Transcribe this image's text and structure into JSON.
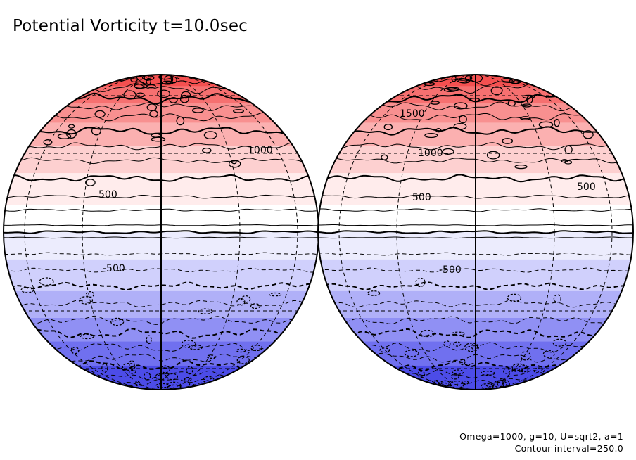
{
  "figure": {
    "title": "Potential Vorticity t=10.0sec",
    "parameters": "Omega=1000, g=10, U=sqrt2, a=1",
    "contour_interval": "Contour interval=250.0"
  },
  "colors": {
    "bands": [
      "#f45050",
      "#f67070",
      "#f89090",
      "#fbb0b0",
      "#fdd0d0",
      "#ffecec",
      "#ffffff",
      "#ececfd",
      "#d0d0fc",
      "#b0b0f8",
      "#9090f4",
      "#7070ef",
      "#4c4ce8"
    ],
    "contour": "#000000"
  },
  "globes": [
    {
      "name": "left",
      "labels": [
        {
          "text": "1000",
          "lat": 40
        },
        {
          "text": "500",
          "lat": 20
        },
        {
          "text": "-500",
          "lat": -20
        }
      ]
    },
    {
      "name": "right",
      "labels": [
        {
          "text": "1500",
          "lat": 56
        },
        {
          "text": "1000",
          "lat": 40
        },
        {
          "text": "500",
          "lat": 20
        },
        {
          "text": "500",
          "lat": 20
        },
        {
          "text": "-500",
          "lat": -20
        }
      ]
    }
  ]
}
